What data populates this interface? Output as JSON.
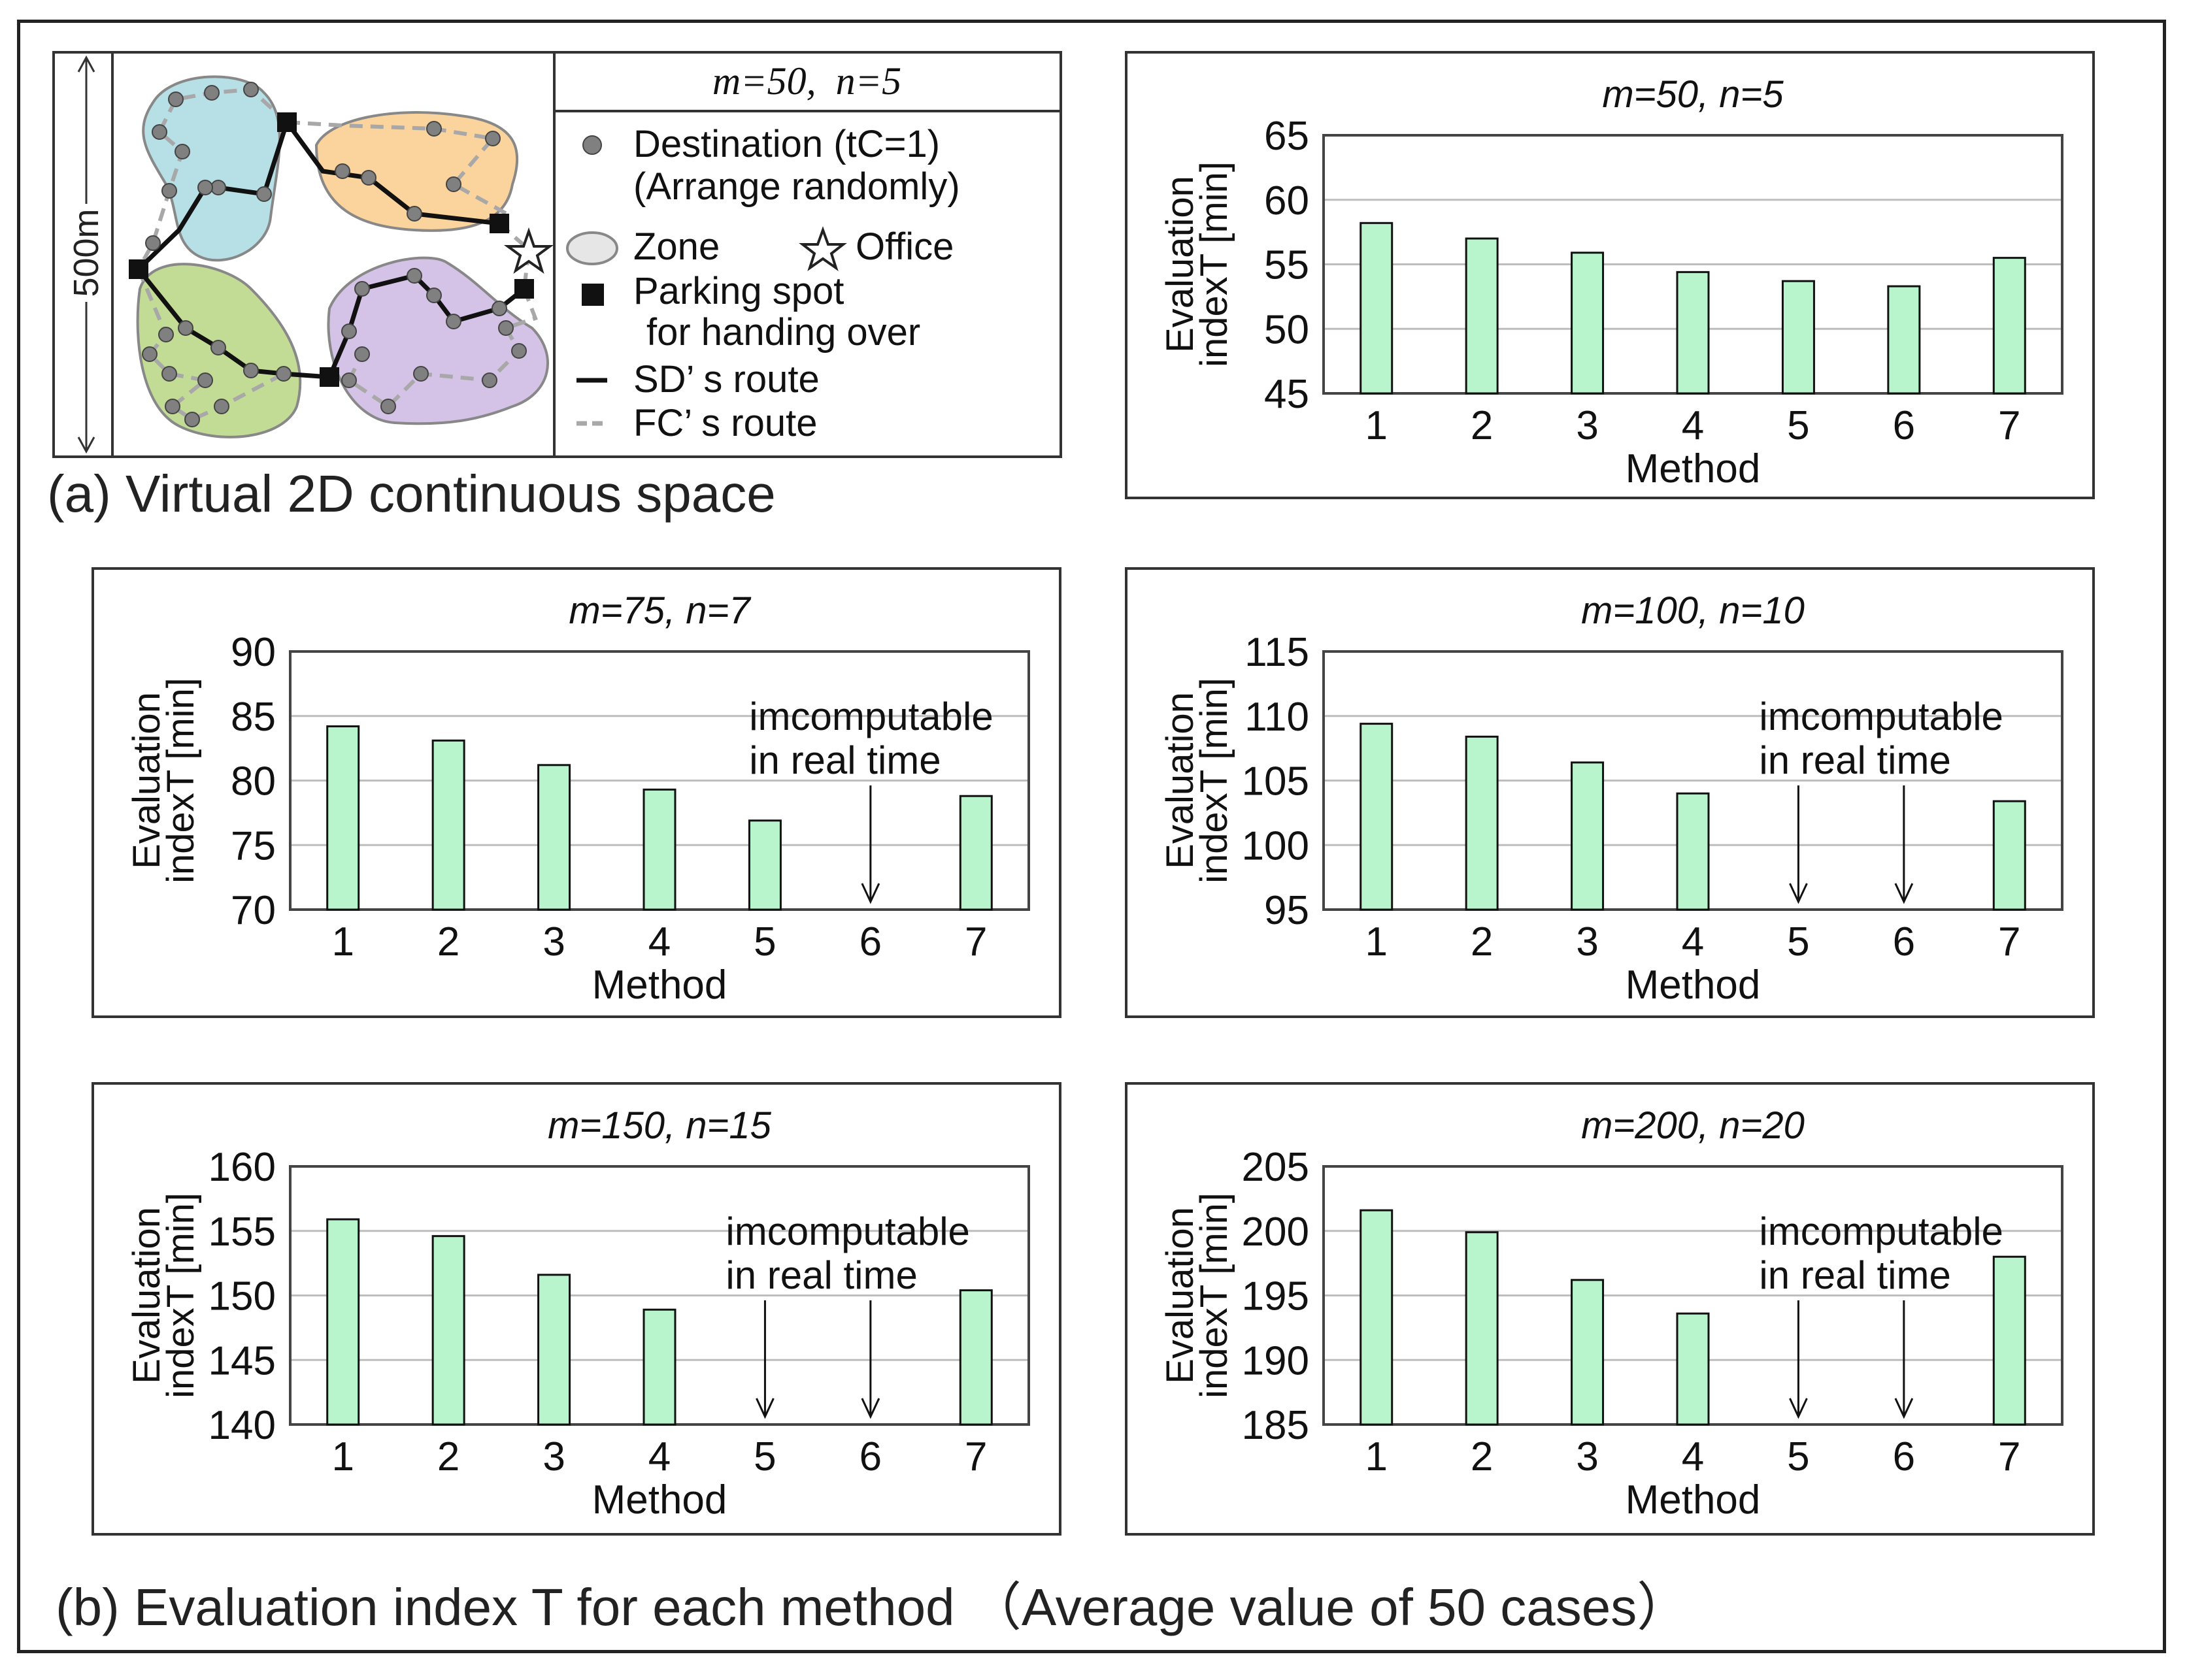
{
  "panel_a": {
    "caption": "(a) Virtual 2D continuous space",
    "scale_label": "500m",
    "legend_title": "m=50,  n=5",
    "legend": {
      "destination": "Destination (tC=1)",
      "destination_note": "(Arrange randomly)",
      "zone": "Zone",
      "office": "Office",
      "parking": "Parking spot",
      "parking_note": "for handing over",
      "sd_route": "SD’ s route",
      "fc_route": "FC’ s route"
    },
    "colors": {
      "zone_blue": "#b6e0e6",
      "zone_orange": "#fbd39c",
      "zone_green": "#c2dc96",
      "zone_purple": "#d4c3e6",
      "destination": "#808080",
      "sd_route": "#111111",
      "fc_route": "#a8a8a8"
    }
  },
  "panel_b": {
    "caption": "(b) Evaluation index T for each method （Average value of 50 cases）"
  },
  "chart_style": {
    "bar_fill": "#b8f5cc",
    "bar_stroke": "#111111",
    "grid": "#bdbdbd"
  },
  "chart_data": [
    {
      "type": "bar",
      "title": "m=50, n=5",
      "categories": [
        "1",
        "2",
        "3",
        "4",
        "5",
        "6",
        "7"
      ],
      "values": [
        58.2,
        57.0,
        55.9,
        54.4,
        53.7,
        53.3,
        55.5
      ],
      "ylim": [
        45,
        65
      ],
      "yticks": [
        45,
        50,
        55,
        60,
        65
      ],
      "xlabel": "Method",
      "ylabel_line1": "Evaluation",
      "ylabel_line2": "indexT [min]",
      "grid": true,
      "annotation": null
    },
    {
      "type": "bar",
      "title": "m=75, n=7",
      "categories": [
        "1",
        "2",
        "3",
        "4",
        "5",
        "6",
        "7"
      ],
      "values": [
        84.2,
        83.1,
        81.2,
        79.3,
        76.9,
        null,
        78.8
      ],
      "ylim": [
        70,
        90
      ],
      "yticks": [
        70,
        75,
        80,
        85,
        90
      ],
      "xlabel": "Method",
      "ylabel_line1": "Evaluation",
      "ylabel_line2": "indexT [min]",
      "grid": true,
      "annotation": {
        "line1": "imcomputable",
        "line2": "in real time",
        "arrows_at": [
          "6"
        ]
      }
    },
    {
      "type": "bar",
      "title": "m=100, n=10",
      "categories": [
        "1",
        "2",
        "3",
        "4",
        "5",
        "6",
        "7"
      ],
      "values": [
        109.4,
        108.4,
        106.4,
        104.0,
        null,
        null,
        103.4
      ],
      "ylim": [
        95,
        115
      ],
      "yticks": [
        95,
        100,
        105,
        110,
        115
      ],
      "xlabel": "Method",
      "ylabel_line1": "Evaluation",
      "ylabel_line2": "indexT [min]",
      "grid": true,
      "annotation": {
        "line1": "imcomputable",
        "line2": "in real time",
        "arrows_at": [
          "5",
          "6"
        ]
      }
    },
    {
      "type": "bar",
      "title": "m=150, n=15",
      "categories": [
        "1",
        "2",
        "3",
        "4",
        "5",
        "6",
        "7"
      ],
      "values": [
        155.9,
        154.6,
        151.6,
        148.9,
        null,
        null,
        150.4
      ],
      "ylim": [
        140,
        160
      ],
      "yticks": [
        140,
        145,
        150,
        155,
        160
      ],
      "xlabel": "Method",
      "ylabel_line1": "Evaluation",
      "ylabel_line2": "indexT [min]",
      "grid": true,
      "annotation": {
        "line1": "imcomputable",
        "line2": "in real time",
        "arrows_at": [
          "5",
          "6"
        ]
      }
    },
    {
      "type": "bar",
      "title": "m=200, n=20",
      "categories": [
        "1",
        "2",
        "3",
        "4",
        "5",
        "6",
        "7"
      ],
      "values": [
        201.6,
        199.9,
        196.2,
        193.6,
        null,
        null,
        198.0
      ],
      "ylim": [
        185,
        205
      ],
      "yticks": [
        185,
        190,
        195,
        200,
        205
      ],
      "xlabel": "Method",
      "ylabel_line1": "Evaluation",
      "ylabel_line2": "indexT [min]",
      "grid": true,
      "annotation": {
        "line1": "imcomputable",
        "line2": "in real time",
        "arrows_at": [
          "5",
          "6"
        ]
      }
    }
  ]
}
